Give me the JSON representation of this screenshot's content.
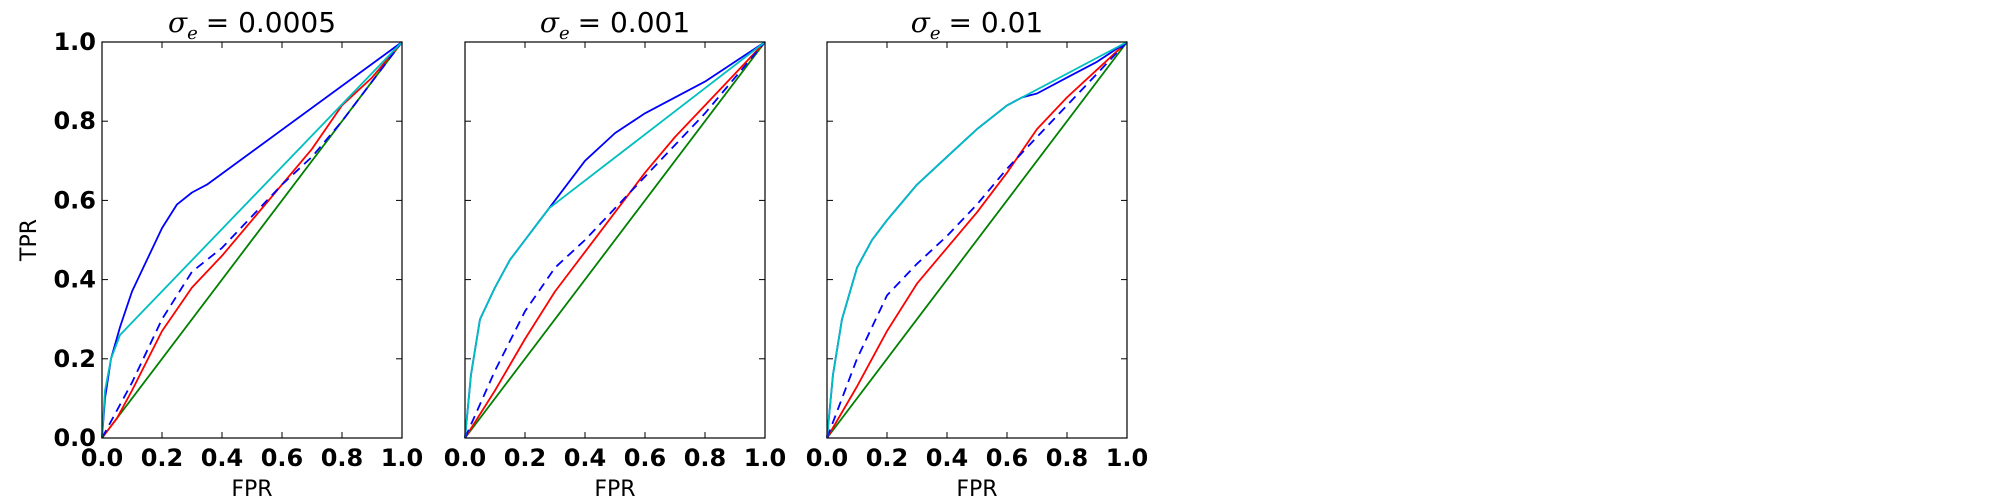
{
  "chart_data": [
    {
      "type": "line",
      "title_sigma": "σ",
      "title_sub": "e",
      "title_value": "= 0.0005",
      "xlabel": "FPR",
      "ylabel": "TPR",
      "xlim": [
        0,
        1
      ],
      "ylim": [
        0,
        1
      ],
      "xticks": [
        "0.0",
        "0.2",
        "0.4",
        "0.6",
        "0.8",
        "1.0"
      ],
      "yticks": [
        "0.0",
        "0.2",
        "0.4",
        "0.6",
        "0.8",
        "1.0"
      ],
      "grid": false,
      "series": [
        {
          "color": "#008000",
          "dash": false,
          "x": [
            0,
            1
          ],
          "y": [
            0,
            1
          ]
        },
        {
          "color": "#ff0000",
          "dash": false,
          "x": [
            0,
            0.05,
            0.1,
            0.2,
            0.3,
            0.4,
            0.5,
            0.6,
            0.7,
            0.8,
            0.9,
            1.0
          ],
          "y": [
            0,
            0.05,
            0.12,
            0.27,
            0.38,
            0.46,
            0.55,
            0.64,
            0.73,
            0.84,
            0.91,
            1.0
          ]
        },
        {
          "color": "#0000ff",
          "dash": true,
          "x": [
            0,
            0.05,
            0.1,
            0.2,
            0.3,
            0.4,
            0.5,
            0.6,
            0.7,
            0.8,
            0.9,
            1.0
          ],
          "y": [
            0,
            0.07,
            0.14,
            0.3,
            0.42,
            0.48,
            0.56,
            0.64,
            0.71,
            0.8,
            0.9,
            1.0
          ]
        },
        {
          "color": "#0000ff",
          "dash": false,
          "x": [
            0,
            0.01,
            0.03,
            0.06,
            0.1,
            0.15,
            0.2,
            0.25,
            0.3,
            0.35,
            1.0
          ],
          "y": [
            0,
            0.1,
            0.2,
            0.28,
            0.37,
            0.45,
            0.53,
            0.59,
            0.62,
            0.64,
            1.0
          ]
        },
        {
          "color": "#00bfbf",
          "dash": false,
          "x": [
            0,
            0.01,
            0.03,
            0.06,
            1.0
          ],
          "y": [
            0,
            0.12,
            0.2,
            0.26,
            1.0
          ]
        }
      ]
    },
    {
      "type": "line",
      "title_sigma": "σ",
      "title_sub": "e",
      "title_value": "= 0.001",
      "xlabel": "FPR",
      "ylabel": "",
      "xlim": [
        0,
        1
      ],
      "ylim": [
        0,
        1
      ],
      "xticks": [
        "0.0",
        "0.2",
        "0.4",
        "0.6",
        "0.8",
        "1.0"
      ],
      "yticks": [],
      "grid": false,
      "series": [
        {
          "color": "#008000",
          "dash": false,
          "x": [
            0,
            1
          ],
          "y": [
            0,
            1
          ]
        },
        {
          "color": "#ff0000",
          "dash": false,
          "x": [
            0,
            0.1,
            0.2,
            0.3,
            0.4,
            0.5,
            0.6,
            0.7,
            0.8,
            0.9,
            1.0
          ],
          "y": [
            0,
            0.12,
            0.25,
            0.37,
            0.47,
            0.57,
            0.67,
            0.76,
            0.84,
            0.92,
            1.0
          ]
        },
        {
          "color": "#0000ff",
          "dash": true,
          "x": [
            0,
            0.1,
            0.2,
            0.3,
            0.4,
            0.5,
            0.6,
            0.7,
            0.8,
            0.9,
            1.0
          ],
          "y": [
            0,
            0.17,
            0.32,
            0.43,
            0.5,
            0.58,
            0.66,
            0.74,
            0.82,
            0.91,
            1.0
          ]
        },
        {
          "color": "#0000ff",
          "dash": false,
          "x": [
            0,
            0.02,
            0.05,
            0.1,
            0.15,
            0.2,
            0.25,
            0.3,
            0.4,
            0.5,
            0.6,
            0.7,
            0.8,
            0.9,
            1.0
          ],
          "y": [
            0,
            0.16,
            0.3,
            0.38,
            0.45,
            0.5,
            0.55,
            0.6,
            0.7,
            0.77,
            0.82,
            0.86,
            0.9,
            0.95,
            1.0
          ]
        },
        {
          "color": "#00bfbf",
          "dash": false,
          "x": [
            0,
            0.02,
            0.05,
            0.1,
            0.15,
            0.2,
            0.25,
            0.28,
            1.0
          ],
          "y": [
            0,
            0.16,
            0.3,
            0.38,
            0.45,
            0.5,
            0.55,
            0.58,
            1.0
          ]
        }
      ]
    },
    {
      "type": "line",
      "title_sigma": "σ",
      "title_sub": "e",
      "title_value": "= 0.01",
      "xlabel": "FPR",
      "ylabel": "",
      "xlim": [
        0,
        1
      ],
      "ylim": [
        0,
        1
      ],
      "xticks": [
        "0.0",
        "0.2",
        "0.4",
        "0.6",
        "0.8",
        "1.0"
      ],
      "yticks": [],
      "grid": false,
      "series": [
        {
          "color": "#008000",
          "dash": false,
          "x": [
            0,
            1
          ],
          "y": [
            0,
            1
          ]
        },
        {
          "color": "#ff0000",
          "dash": false,
          "x": [
            0,
            0.1,
            0.2,
            0.3,
            0.4,
            0.5,
            0.6,
            0.7,
            0.8,
            0.9,
            1.0
          ],
          "y": [
            0,
            0.13,
            0.27,
            0.39,
            0.48,
            0.57,
            0.67,
            0.78,
            0.86,
            0.93,
            1.0
          ]
        },
        {
          "color": "#0000ff",
          "dash": true,
          "x": [
            0,
            0.05,
            0.1,
            0.2,
            0.3,
            0.4,
            0.5,
            0.6,
            0.7,
            0.8,
            0.9,
            1.0
          ],
          "y": [
            0,
            0.1,
            0.2,
            0.36,
            0.44,
            0.51,
            0.59,
            0.68,
            0.76,
            0.84,
            0.92,
            1.0
          ]
        },
        {
          "color": "#0000ff",
          "dash": false,
          "x": [
            0,
            0.02,
            0.05,
            0.1,
            0.15,
            0.2,
            0.3,
            0.4,
            0.5,
            0.6,
            0.65,
            0.7,
            0.8,
            0.9,
            1.0
          ],
          "y": [
            0,
            0.16,
            0.3,
            0.43,
            0.5,
            0.55,
            0.64,
            0.71,
            0.78,
            0.84,
            0.86,
            0.87,
            0.91,
            0.95,
            1.0
          ]
        },
        {
          "color": "#00bfbf",
          "dash": false,
          "x": [
            0,
            0.02,
            0.05,
            0.1,
            0.15,
            0.2,
            0.3,
            0.4,
            0.5,
            0.6,
            1.0
          ],
          "y": [
            0,
            0.16,
            0.3,
            0.43,
            0.5,
            0.55,
            0.64,
            0.71,
            0.78,
            0.84,
            1.0
          ]
        }
      ]
    }
  ]
}
